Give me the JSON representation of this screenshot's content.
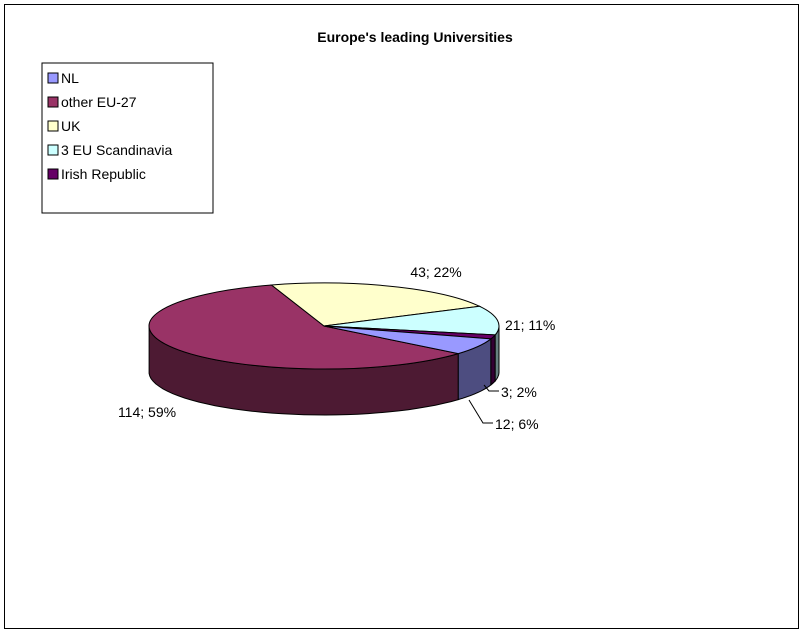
{
  "chart_data": {
    "type": "pie",
    "title": "Europe's leading Universities",
    "slices": [
      {
        "name": "NL",
        "value": 12,
        "percent": "6%",
        "label": "12; 6%",
        "color": "#9999FF"
      },
      {
        "name": "other EU-27",
        "value": 114,
        "percent": "59%",
        "label": "114; 59%",
        "color": "#993366"
      },
      {
        "name": "UK",
        "value": 43,
        "percent": "22%",
        "label": "43; 22%",
        "color": "#FFFFCC"
      },
      {
        "name": "3 EU Scandinavia",
        "value": 21,
        "percent": "11%",
        "label": "21; 11%",
        "color": "#CCFFFF"
      },
      {
        "name": "Irish Republic",
        "value": 3,
        "percent": "2%",
        "label": "3; 2%",
        "color": "#660066"
      }
    ],
    "legend_position": "top-left",
    "style": "3d-pie"
  }
}
